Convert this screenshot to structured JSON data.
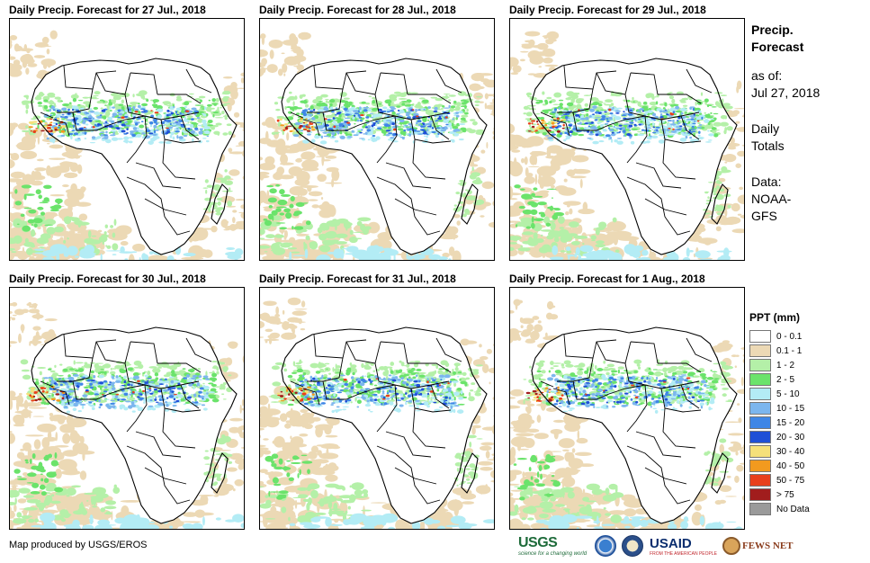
{
  "panels": [
    {
      "title": "Daily Precip. Forecast for 27 Jul., 2018"
    },
    {
      "title": "Daily Precip. Forecast for 28 Jul., 2018"
    },
    {
      "title": "Daily Precip. Forecast for 29 Jul., 2018"
    },
    {
      "title": "Daily Precip. Forecast for 30 Jul., 2018"
    },
    {
      "title": "Daily Precip. Forecast for 31 Jul., 2018"
    },
    {
      "title": "Daily Precip. Forecast for 1 Aug., 2018"
    }
  ],
  "side": {
    "title_1": "Precip.",
    "title_2": "Forecast",
    "asof_label": "as of:",
    "asof_date": "Jul 27, 2018",
    "totals_1": "Daily",
    "totals_2": "Totals",
    "data_1": "Data:",
    "data_2": "NOAA-",
    "data_3": "GFS"
  },
  "legend": {
    "title": "PPT (mm)",
    "items": [
      {
        "label": "0 - 0.1",
        "color": "#ffffff"
      },
      {
        "label": "0.1 - 1",
        "color": "#ecd9b5"
      },
      {
        "label": "1 - 2",
        "color": "#b4f0a8"
      },
      {
        "label": "2 - 5",
        "color": "#6be36b"
      },
      {
        "label": "5 - 10",
        "color": "#b3ecf5"
      },
      {
        "label": "10 - 15",
        "color": "#7cb6ee"
      },
      {
        "label": "15 - 20",
        "color": "#3f86e6"
      },
      {
        "label": "20 - 30",
        "color": "#1f4fd6"
      },
      {
        "label": "30 - 40",
        "color": "#f5e07a"
      },
      {
        "label": "40 - 50",
        "color": "#f29a1f"
      },
      {
        "label": "50 - 75",
        "color": "#e8401c"
      },
      {
        "label": "> 75",
        "color": "#a11d1d"
      },
      {
        "label": "No Data",
        "color": "#9a9a9a"
      }
    ]
  },
  "credit": "Map produced by USGS/EROS",
  "logos": {
    "usgs": "USGS",
    "usgs_tag": "science for a changing world",
    "usaid": "USAID",
    "usaid_tag": "FROM THE AMERICAN PEOPLE",
    "fews": "FEWS NET"
  }
}
